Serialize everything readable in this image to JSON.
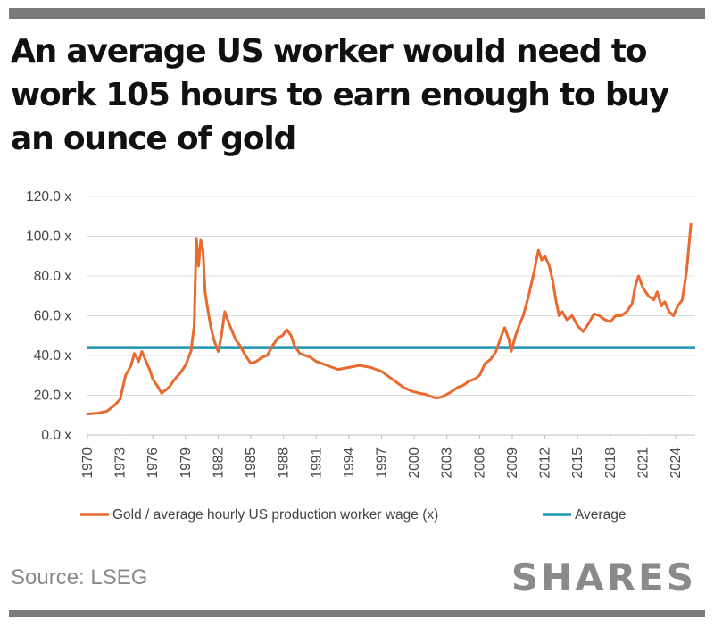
{
  "colors": {
    "gold_series": "#e86a2e",
    "average": "#1f95b5",
    "grid": "#dcdcdc",
    "rule": "#7a7a7a"
  },
  "chart_data": {
    "type": "line",
    "title": "An average US worker would need to work 105 hours to earn enough to buy an ounce of gold",
    "xlabel": "",
    "ylabel": "",
    "xlim": [
      1970,
      2025.8
    ],
    "ylim": [
      0,
      120
    ],
    "y_ticks": [
      "0.0 x",
      "20.0 x",
      "40.0 x",
      "60.0 x",
      "80.0 x",
      "100.0 x",
      "120.0 x"
    ],
    "x_ticks": [
      "1970",
      "1973",
      "1976",
      "1979",
      "1982",
      "1985",
      "1988",
      "1991",
      "1994",
      "1997",
      "2000",
      "2003",
      "2006",
      "2009",
      "2012",
      "2015",
      "2018",
      "2021",
      "2024"
    ],
    "legend_position": "bottom",
    "series": [
      {
        "name": "Gold / average hourly US production worker wage (x)",
        "x": [
          1970,
          1971,
          1971.8,
          1972.5,
          1973,
          1973.5,
          1974,
          1974.3,
          1974.7,
          1975,
          1975.3,
          1975.7,
          1976,
          1976.5,
          1976.8,
          1977.5,
          1978,
          1978.5,
          1979,
          1979.5,
          1979.8,
          1980.0,
          1980.2,
          1980.4,
          1980.6,
          1980.8,
          1981.0,
          1981.3,
          1981.6,
          1982.0,
          1982.3,
          1982.6,
          1983.0,
          1983.3,
          1983.6,
          1984.0,
          1984.5,
          1985.0,
          1985.5,
          1986.0,
          1986.5,
          1987.0,
          1987.5,
          1987.9,
          1988.3,
          1988.7,
          1989.0,
          1989.5,
          1990.0,
          1990.5,
          1991.0,
          1992.0,
          1993.0,
          1994.0,
          1995.0,
          1996.0,
          1997.0,
          1998.0,
          1999.0,
          1999.8,
          2000.5,
          2001.0,
          2001.5,
          2002.0,
          2002.5,
          2003.0,
          2003.5,
          2004.0,
          2004.5,
          2005.0,
          2005.5,
          2006.0,
          2006.5,
          2007.0,
          2007.5,
          2008.0,
          2008.3,
          2008.7,
          2008.9,
          2009.3,
          2009.7,
          2010.0,
          2010.5,
          2011.0,
          2011.4,
          2011.7,
          2012.0,
          2012.4,
          2012.7,
          2013.0,
          2013.3,
          2013.6,
          2014.0,
          2014.5,
          2015.0,
          2015.5,
          2016.0,
          2016.5,
          2017.0,
          2017.5,
          2018.0,
          2018.5,
          2019.0,
          2019.5,
          2020.0,
          2020.3,
          2020.6,
          2021.0,
          2021.5,
          2022.0,
          2022.3,
          2022.7,
          2023.0,
          2023.4,
          2023.8,
          2024.2,
          2024.6,
          2025.0,
          2025.4
        ],
        "values": [
          10.5,
          11,
          12,
          15,
          18,
          30,
          35,
          41,
          37,
          42,
          38,
          33,
          28,
          24,
          21,
          24,
          28,
          31,
          35,
          42,
          55,
          99,
          85,
          98,
          93,
          72,
          65,
          55,
          48,
          42,
          50,
          62,
          56,
          52,
          48,
          45,
          40,
          36,
          37,
          39,
          40,
          45,
          49,
          50,
          53,
          50,
          45,
          41,
          40,
          39,
          37,
          35,
          33,
          34,
          35,
          34,
          32,
          28,
          24,
          22,
          21,
          20.5,
          19.5,
          18.5,
          19,
          20.5,
          22,
          24,
          25,
          27,
          28,
          30,
          36,
          38,
          42,
          50,
          54,
          48,
          42,
          50,
          56,
          60,
          70,
          82,
          93,
          88,
          90,
          85,
          78,
          68,
          60,
          62,
          58,
          60,
          55,
          52,
          56,
          61,
          60,
          58,
          57,
          60,
          60,
          62,
          66,
          75,
          80,
          74,
          70,
          68,
          72,
          65,
          67,
          62,
          60,
          65,
          68,
          82,
          106
        ]
      },
      {
        "name": "Average",
        "value": 44
      }
    ]
  },
  "footer": {
    "source": "Source: LSEG",
    "brand": "SHARES"
  }
}
